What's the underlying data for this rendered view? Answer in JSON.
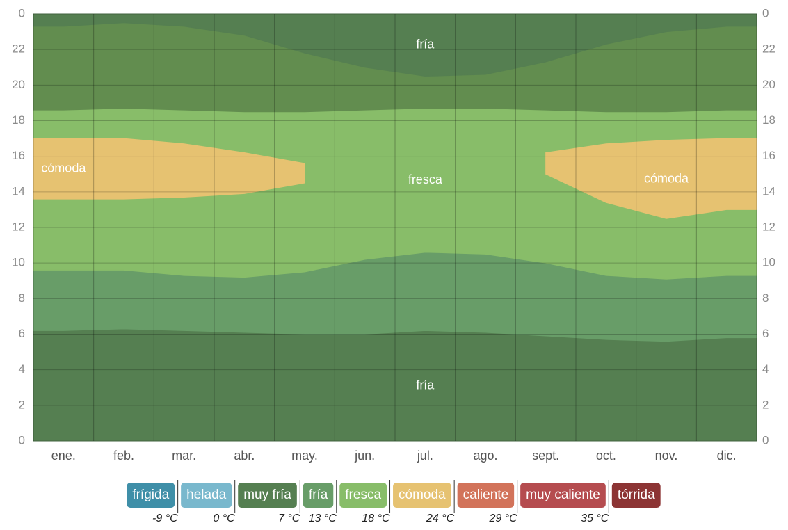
{
  "chart_data": {
    "type": "band",
    "categories": [
      "ene.",
      "feb.",
      "mar.",
      "abr.",
      "may.",
      "jun.",
      "jul.",
      "ago.",
      "sept.",
      "oct.",
      "nov.",
      "dic."
    ],
    "ylim": [
      0,
      24
    ],
    "yticks": [
      0,
      2,
      4,
      6,
      8,
      10,
      12,
      14,
      16,
      18,
      20,
      22,
      {
        "value": 24,
        "label": "0"
      }
    ],
    "grid": true,
    "bands": [
      {
        "label": "fría",
        "color": "#557f51",
        "lower": [
          0,
          0,
          0,
          0,
          0,
          0,
          0,
          0,
          0,
          0,
          0,
          0
        ],
        "upper": [
          6.2,
          6.3,
          6.2,
          6.1,
          6.0,
          6.0,
          6.2,
          6.1,
          5.9,
          5.7,
          5.6,
          5.8
        ]
      },
      {
        "color": "#689d68",
        "lower": [
          6.2,
          6.3,
          6.2,
          6.1,
          6.0,
          6.0,
          6.2,
          6.1,
          5.9,
          5.7,
          5.6,
          5.8
        ],
        "upper": [
          9.6,
          9.6,
          9.3,
          9.2,
          9.5,
          10.2,
          10.6,
          10.5,
          10.0,
          9.3,
          9.1,
          9.3
        ]
      },
      {
        "label": "fresca",
        "color": "#88bd69",
        "lower": [
          9.6,
          9.6,
          9.3,
          9.2,
          9.5,
          10.2,
          10.6,
          10.5,
          10.0,
          9.3,
          9.1,
          9.3
        ],
        "upper": [
          18.6,
          18.7,
          18.6,
          18.5,
          18.5,
          18.6,
          18.7,
          18.7,
          18.6,
          18.5,
          18.5,
          18.6
        ]
      },
      {
        "color": "#628d4f",
        "lower": [
          18.6,
          18.7,
          18.6,
          18.5,
          18.5,
          18.6,
          18.7,
          18.7,
          18.6,
          18.5,
          18.5,
          18.6
        ],
        "upper": [
          23.3,
          23.5,
          23.3,
          22.8,
          21.8,
          21.0,
          20.5,
          20.6,
          21.3,
          22.3,
          23.0,
          23.3
        ]
      },
      {
        "label": "fría",
        "color": "#557f51",
        "lower": [
          23.3,
          23.5,
          23.3,
          22.8,
          21.8,
          21.0,
          20.5,
          20.6,
          21.3,
          22.3,
          23.0,
          23.3
        ],
        "upper": [
          24,
          24,
          24,
          24,
          24,
          24,
          24,
          24,
          24,
          24,
          24,
          24
        ]
      },
      {
        "label": "cómoda",
        "color": "#e6c271",
        "lower": [
          13.6,
          13.6,
          13.7,
          13.9,
          14.5,
          null,
          null,
          null,
          null,
          null,
          null,
          null
        ],
        "upper": [
          17.0,
          17.0,
          16.7,
          16.2,
          15.6,
          null,
          null,
          null,
          null,
          null,
          null,
          null
        ]
      },
      {
        "label": "cómoda",
        "color": "#e6c271",
        "lower": [
          null,
          null,
          null,
          null,
          null,
          null,
          null,
          null,
          15.0,
          13.4,
          12.5,
          13.0
        ],
        "upper": [
          null,
          null,
          null,
          null,
          null,
          null,
          null,
          null,
          16.2,
          16.7,
          16.9,
          17.0
        ]
      }
    ],
    "legend": {
      "names": [
        "frígida",
        "helada",
        "muy fría",
        "fría",
        "fresca",
        "cómoda",
        "caliente",
        "muy caliente",
        "tórrida"
      ],
      "colors": [
        "#3f8fa8",
        "#79b8cd",
        "#557f51",
        "#689d68",
        "#88bd69",
        "#e6c271",
        "#d2735a",
        "#b54c4f",
        "#8c3434"
      ],
      "thresholds": [
        {
          "value": -9,
          "label": "-9 °C"
        },
        {
          "value": 0,
          "label": "0 °C"
        },
        {
          "value": 7,
          "label": "7 °C"
        },
        {
          "value": 13,
          "label": "13 °C"
        },
        {
          "value": 18,
          "label": "18 °C"
        },
        {
          "value": 24,
          "label": "24 °C"
        },
        {
          "value": 29,
          "label": "29 °C"
        },
        {
          "value": 35,
          "label": "35 °C"
        }
      ]
    }
  }
}
